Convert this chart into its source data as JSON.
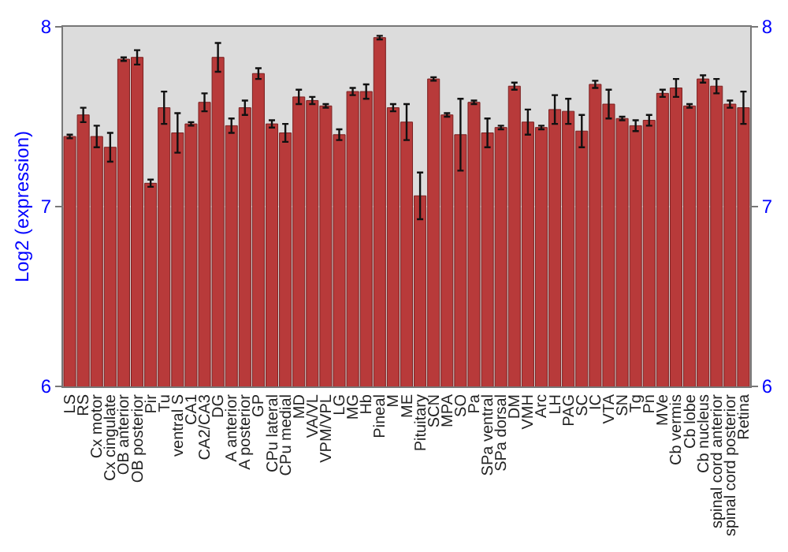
{
  "chart_data": {
    "type": "bar",
    "ylabel": "Log2 (expression)",
    "categories": [
      "LS",
      "RS",
      "Cx motor",
      "Cx cingulate",
      "OB anterior",
      "OB posterior",
      "Pir",
      "Tu",
      "ventral S",
      "CA1",
      "CA2/CA3",
      "DG",
      "A anterior",
      "A posterior",
      "GP",
      "CPu lateral",
      "CPu medial",
      "MD",
      "VA/VL",
      "VPM/VPL",
      "LG",
      "MG",
      "Hb",
      "Pineal",
      "M",
      "ME",
      "Pituitary",
      "SCN",
      "MPA",
      "SO",
      "Pa",
      "SPa ventral",
      "SPa dorsal",
      "DM",
      "VMH",
      "Arc",
      "LH",
      "PAG",
      "SC",
      "IC",
      "VTA",
      "SN",
      "Tg",
      "Pn",
      "MVe",
      "Cb vermis",
      "Cb lobe",
      "Cb nucleus",
      "spinal cord anterior",
      "spinal cord posterior",
      "Retina"
    ],
    "values": [
      7.39,
      7.51,
      7.39,
      7.33,
      7.82,
      7.83,
      7.13,
      7.55,
      7.41,
      7.46,
      7.58,
      7.83,
      7.45,
      7.55,
      7.74,
      7.46,
      7.41,
      7.61,
      7.59,
      7.56,
      7.4,
      7.64,
      7.64,
      7.94,
      7.55,
      7.47,
      7.06,
      7.71,
      7.51,
      7.4,
      7.58,
      7.41,
      7.44,
      7.67,
      7.47,
      7.44,
      7.54,
      7.53,
      7.42,
      7.68,
      7.57,
      7.49,
      7.45,
      7.48,
      7.63,
      7.66,
      7.56,
      7.71,
      7.67,
      7.57,
      7.55
    ],
    "errors": [
      0.01,
      0.04,
      0.06,
      0.08,
      0.01,
      0.04,
      0.02,
      0.09,
      0.11,
      0.01,
      0.05,
      0.08,
      0.04,
      0.04,
      0.03,
      0.02,
      0.05,
      0.04,
      0.02,
      0.01,
      0.03,
      0.02,
      0.04,
      0.01,
      0.02,
      0.1,
      0.13,
      0.01,
      0.01,
      0.2,
      0.01,
      0.08,
      0.01,
      0.02,
      0.07,
      0.01,
      0.08,
      0.07,
      0.09,
      0.02,
      0.08,
      0.01,
      0.03,
      0.03,
      0.02,
      0.05,
      0.01,
      0.02,
      0.04,
      0.02,
      0.09
    ],
    "color": "#b83a3a",
    "ylim": [
      6,
      8
    ],
    "yticks": [
      6,
      7,
      8
    ],
    "y2lim": [
      6,
      8
    ],
    "y2ticks": [
      6,
      7,
      8
    ],
    "grid": "y"
  }
}
